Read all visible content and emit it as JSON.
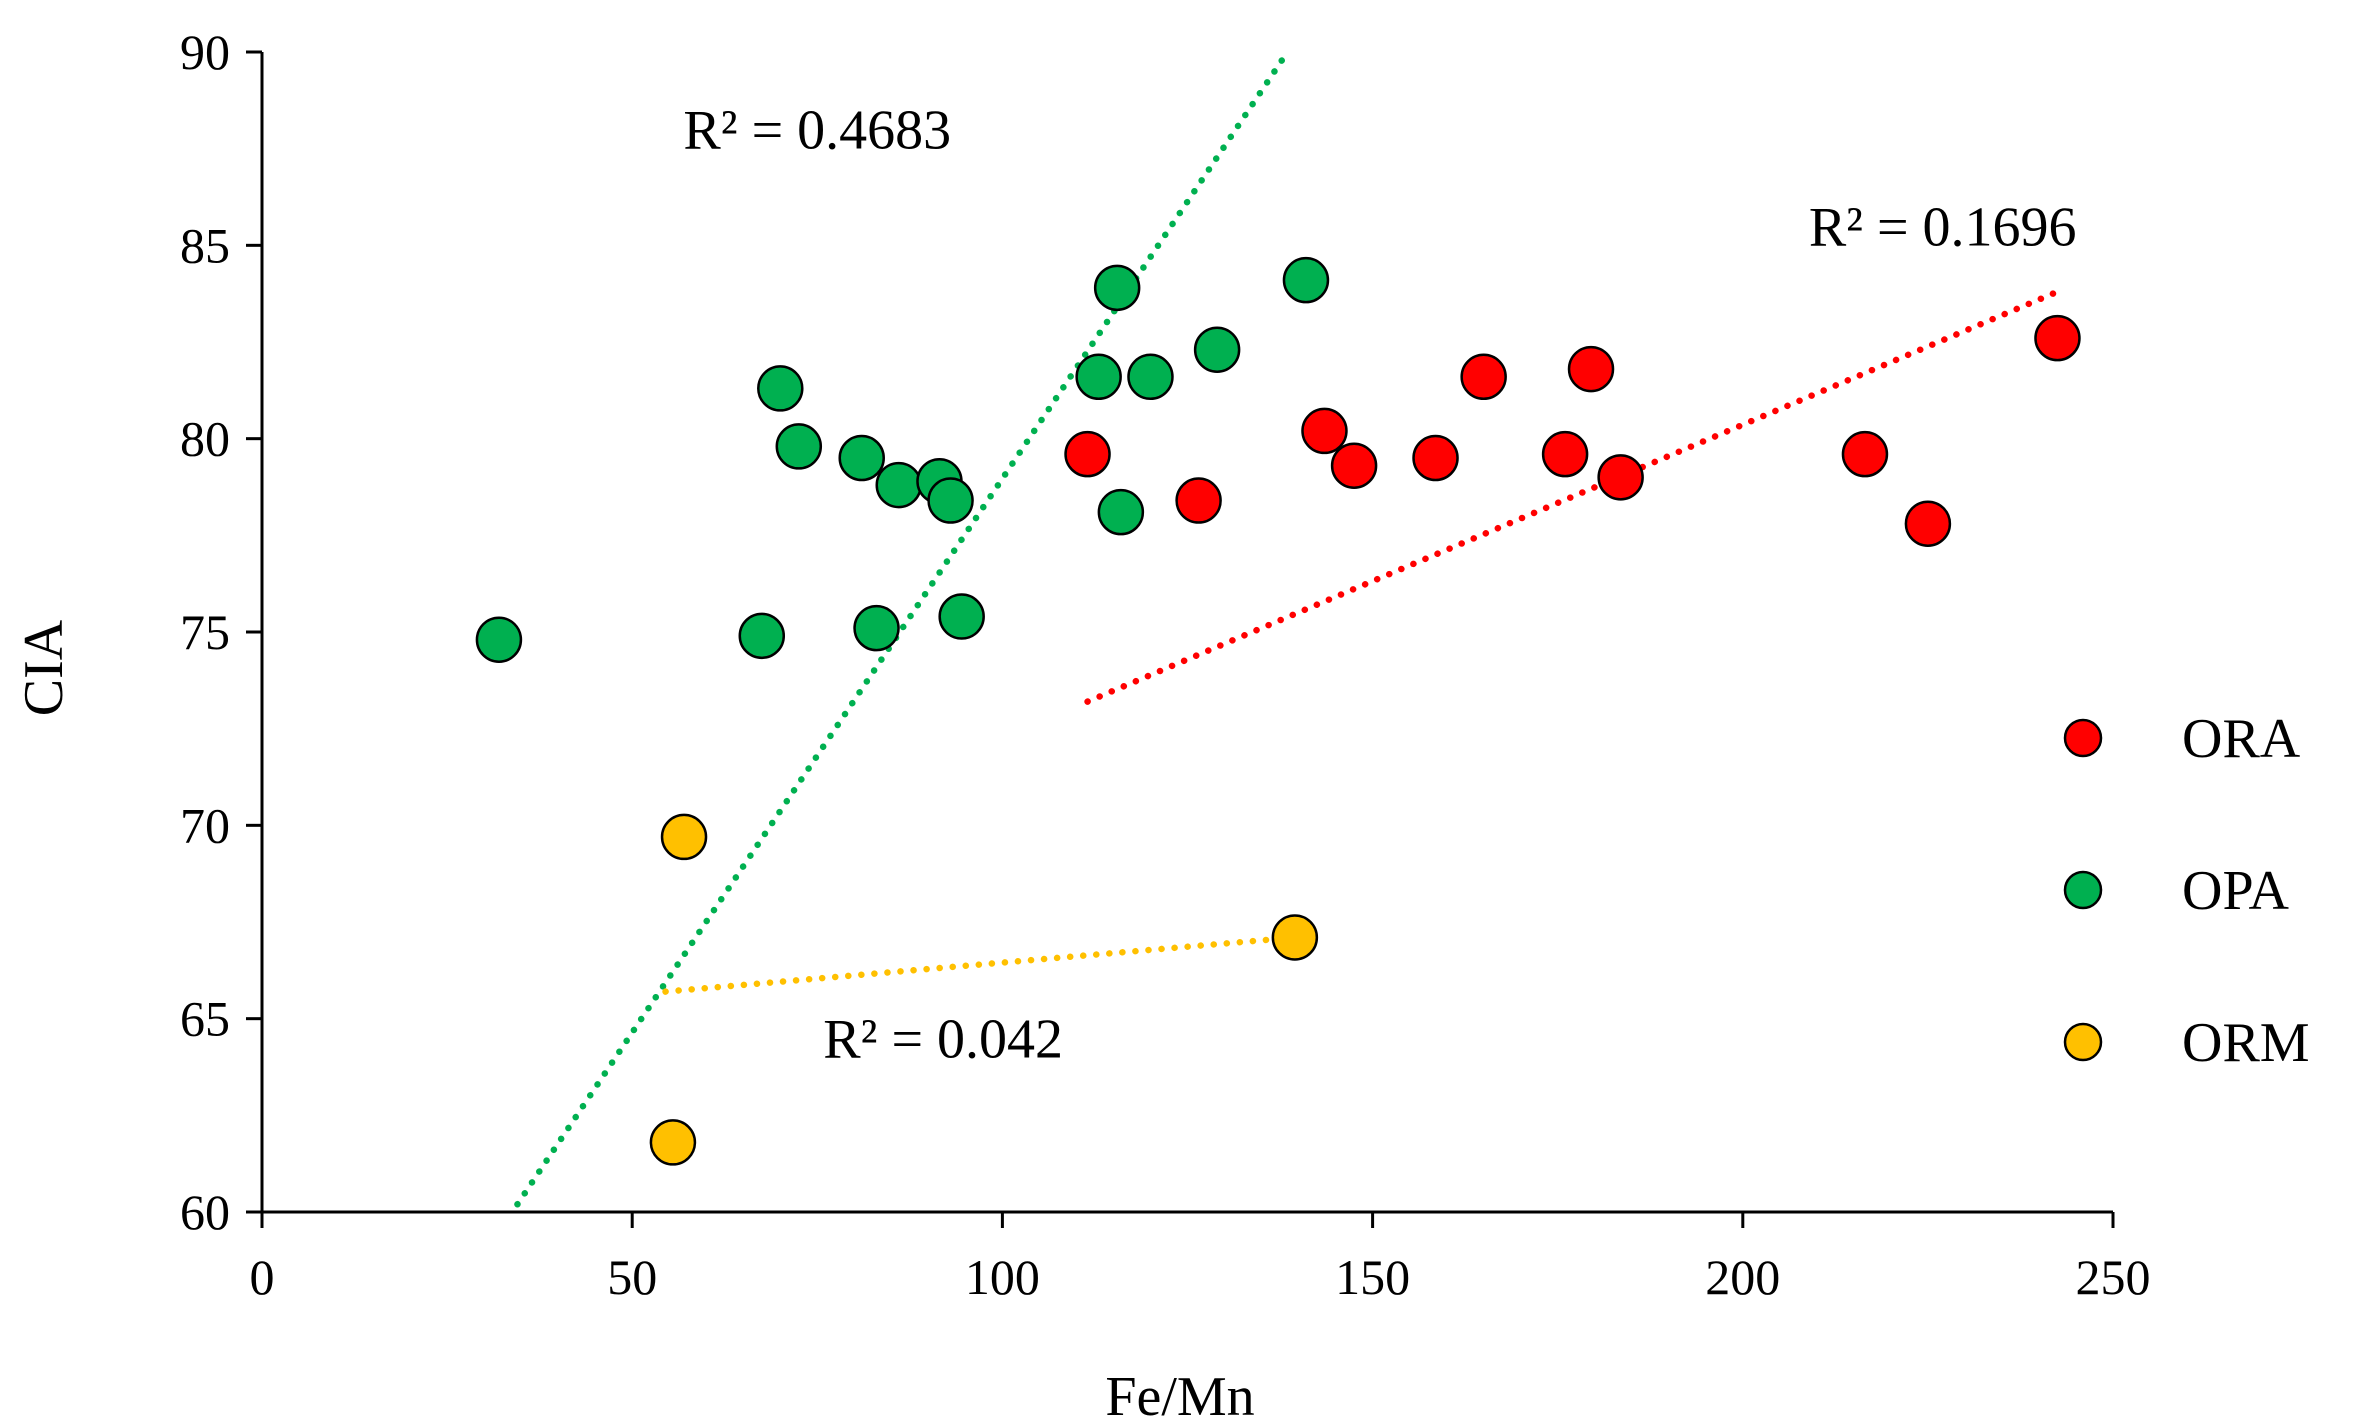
{
  "chart_data": {
    "type": "scatter",
    "title": "",
    "xlabel": "Fe/Mn",
    "ylabel": "CIA",
    "xlim": [
      0,
      250
    ],
    "ylim": [
      60,
      90
    ],
    "xticks": [
      0,
      50,
      100,
      150,
      200,
      250
    ],
    "yticks": [
      60,
      65,
      70,
      75,
      80,
      85,
      90
    ],
    "grid": false,
    "legend_position": "right",
    "series": [
      {
        "name": "ORA",
        "color": "#ff0000",
        "points": [
          [
            111.5,
            79.6
          ],
          [
            126.5,
            78.4
          ],
          [
            143.5,
            80.2
          ],
          [
            147.5,
            79.3
          ],
          [
            158.5,
            79.5
          ],
          [
            165,
            81.6
          ],
          [
            176,
            79.6
          ],
          [
            179.5,
            81.8
          ],
          [
            183.5,
            79.0
          ],
          [
            216.5,
            79.6
          ],
          [
            225,
            77.8
          ],
          [
            242.5,
            82.6
          ]
        ],
        "trendline": {
          "x": [
            111.5,
            242.5
          ],
          "y": [
            73.2,
            83.8
          ]
        },
        "r2_label": "R² = 0.1696",
        "r2_anchor": [
          227,
          85
        ]
      },
      {
        "name": "OPA",
        "color": "#00b050",
        "points": [
          [
            32,
            74.8
          ],
          [
            67.5,
            74.9
          ],
          [
            70,
            81.3
          ],
          [
            72.5,
            79.8
          ],
          [
            81,
            79.5
          ],
          [
            83,
            75.1
          ],
          [
            86,
            78.8
          ],
          [
            91.5,
            78.9
          ],
          [
            93,
            78.4
          ],
          [
            94.5,
            75.4
          ],
          [
            113,
            81.6
          ],
          [
            115.5,
            83.9
          ],
          [
            116,
            78.1
          ],
          [
            120,
            81.6
          ],
          [
            129,
            82.3
          ],
          [
            141,
            84.1
          ]
        ],
        "trendline": {
          "x": [
            34.5,
            138.5
          ],
          "y": [
            60.2,
            90.0
          ]
        },
        "r2_label": "R² = 0.4683",
        "r2_anchor": [
          75,
          87.5
        ]
      },
      {
        "name": "ORM",
        "color": "#ffc000",
        "points": [
          [
            55.5,
            61.8
          ],
          [
            57,
            69.7
          ],
          [
            139.5,
            67.1
          ]
        ],
        "trendline": {
          "x": [
            54.5,
            139.5
          ],
          "y": [
            65.7,
            67.1
          ]
        },
        "r2_label": "R² = 0.042",
        "r2_anchor": [
          92,
          64
        ]
      }
    ]
  }
}
